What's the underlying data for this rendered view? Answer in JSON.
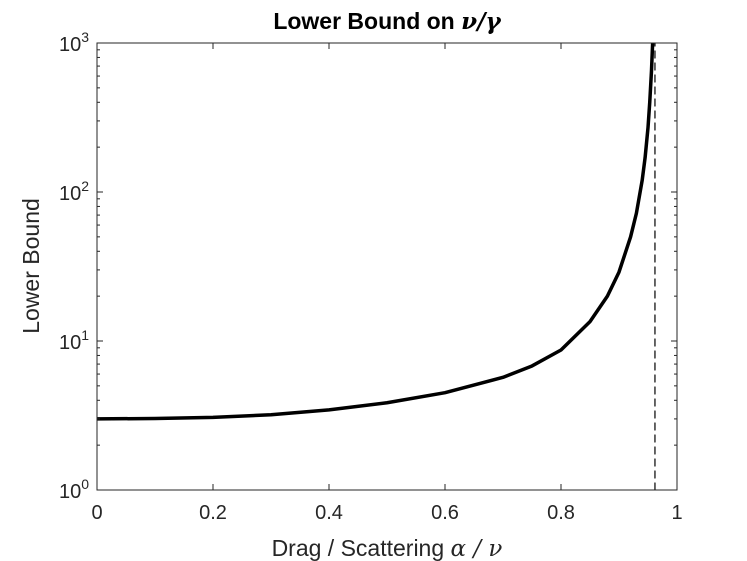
{
  "chart_data": {
    "type": "line",
    "title": {
      "text": "Lower Bound on ",
      "math": "ν/γ"
    },
    "xlabel": {
      "text": "Drag / Scattering ",
      "math": "α / ν"
    },
    "ylabel": "Lower Bound",
    "xlim": [
      0,
      1
    ],
    "ylim": [
      1,
      1000
    ],
    "yscale": "log",
    "xticks": [
      {
        "value": 0,
        "label": "0"
      },
      {
        "value": 0.2,
        "label": "0.2"
      },
      {
        "value": 0.4,
        "label": "0.4"
      },
      {
        "value": 0.6,
        "label": "0.6"
      },
      {
        "value": 0.8,
        "label": "0.8"
      },
      {
        "value": 1,
        "label": "1"
      }
    ],
    "yticks": [
      {
        "value": 1,
        "base": "10",
        "exp": "0"
      },
      {
        "value": 10,
        "base": "10",
        "exp": "1"
      },
      {
        "value": 100,
        "base": "10",
        "exp": "2"
      },
      {
        "value": 1000,
        "base": "10",
        "exp": "3"
      }
    ],
    "grid": false,
    "series": [
      {
        "style": "solid",
        "color": "#000000",
        "x": [
          0,
          0.1,
          0.2,
          0.3,
          0.4,
          0.5,
          0.6,
          0.7,
          0.75,
          0.8,
          0.85,
          0.88,
          0.9,
          0.92,
          0.93,
          0.94,
          0.945,
          0.95,
          0.953,
          0.956,
          0.958,
          0.96
        ],
        "y": [
          3.0,
          3.02,
          3.07,
          3.2,
          3.45,
          3.85,
          4.5,
          5.7,
          6.8,
          8.7,
          13.5,
          20,
          29,
          50,
          72,
          120,
          170,
          270,
          400,
          650,
          1000,
          1500
        ]
      },
      {
        "style": "dashed",
        "color": "#000000",
        "x": [
          0.962,
          0.962
        ],
        "y": [
          1,
          1000
        ]
      }
    ]
  }
}
